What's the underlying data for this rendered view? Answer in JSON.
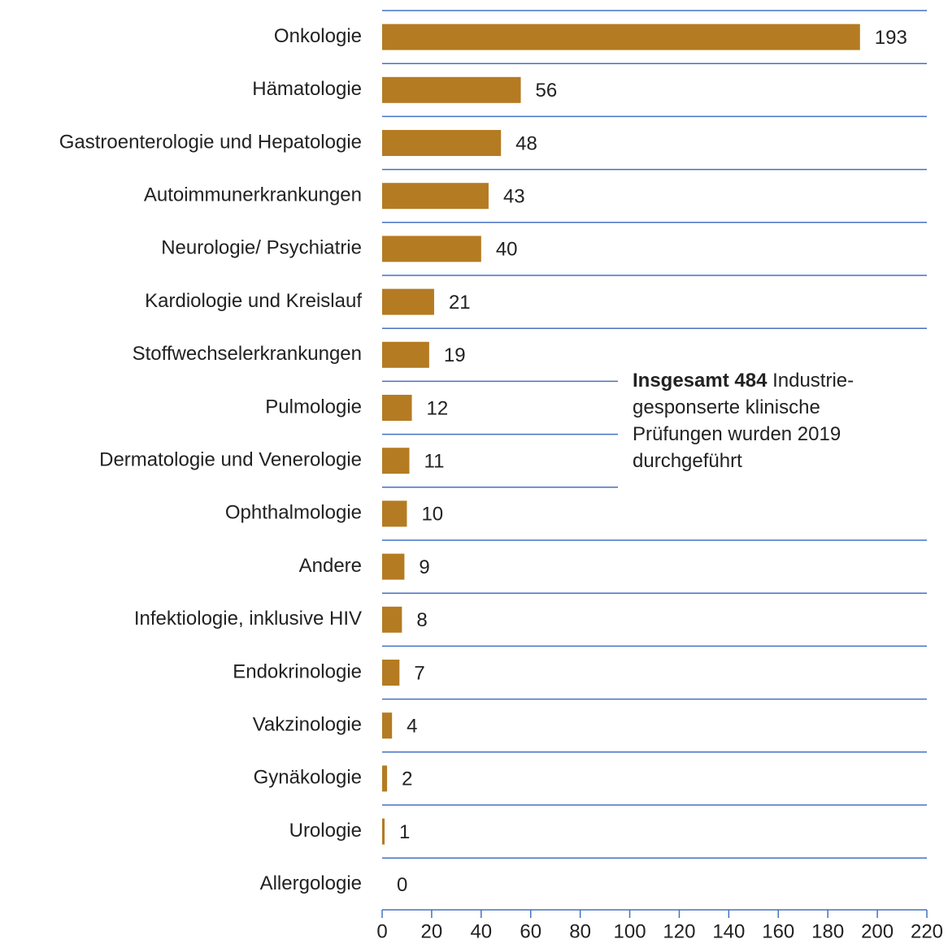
{
  "chart_data": {
    "type": "barh",
    "categories": [
      "Onkologie",
      "Hämatologie",
      "Gastroenterologie und Hepatologie",
      "Autoimmunerkrankungen",
      "Neurologie/ Psychiatrie",
      "Kardiologie und Kreislauf",
      "Stoffwechselerkrankungen",
      "Pulmologie",
      "Dermatologie und Venerologie",
      "Ophthalmologie",
      "Andere",
      "Infektiologie, inklusive HIV",
      "Endokrinologie",
      "Vakzinologie",
      "Gynäkologie",
      "Urologie",
      "Allergologie"
    ],
    "values": [
      193,
      56,
      48,
      43,
      40,
      21,
      19,
      12,
      11,
      10,
      9,
      8,
      7,
      4,
      2,
      1,
      0
    ],
    "color": "#b47b22",
    "xlim": [
      0,
      220
    ],
    "xticks": [
      0,
      20,
      40,
      60,
      80,
      100,
      120,
      140,
      160,
      180,
      200,
      220
    ],
    "annotation": {
      "bold": "Insgesamt 484",
      "text": "Industrie-gesponserte klinische Prüfungen wurden 2019 durchgeführt"
    }
  }
}
